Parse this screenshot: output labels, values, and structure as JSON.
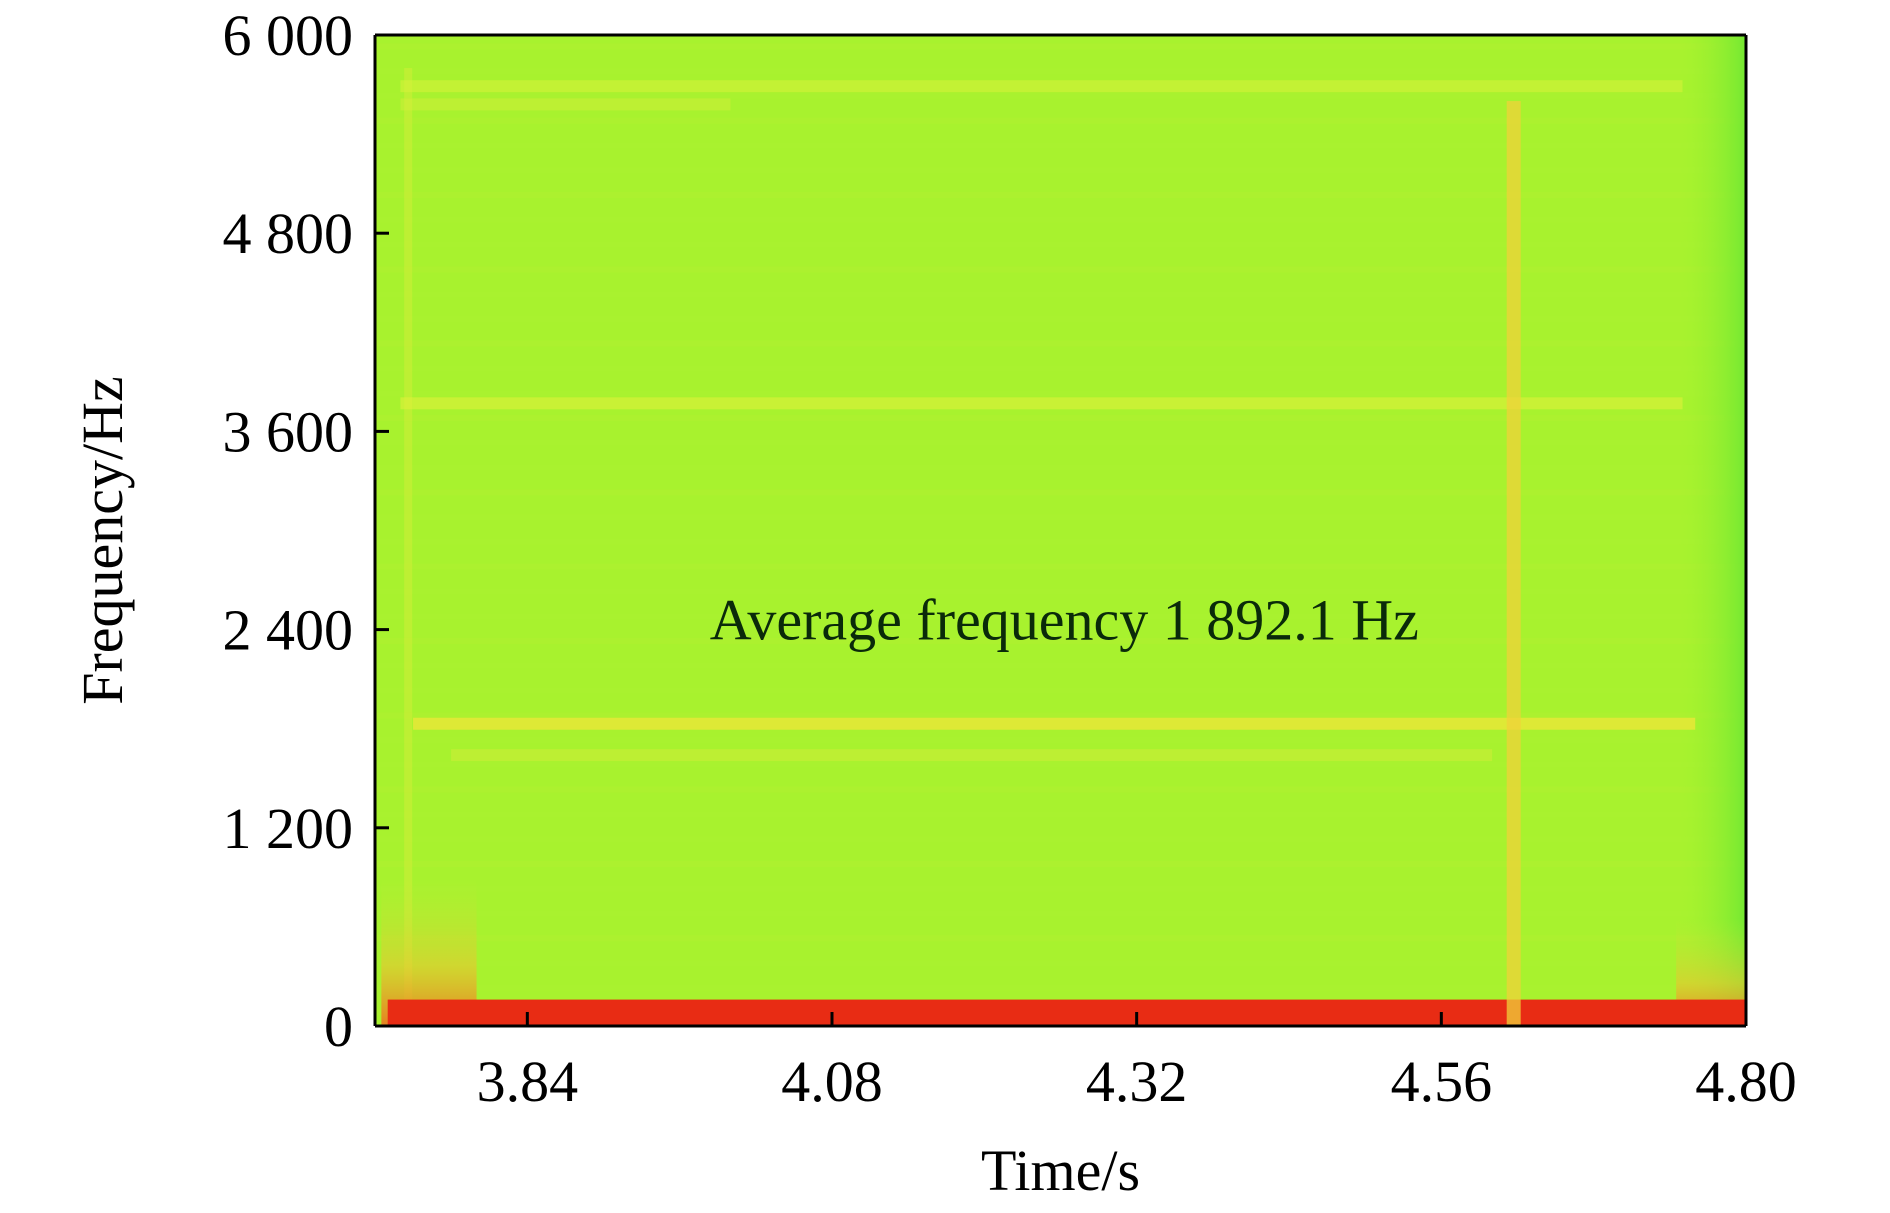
{
  "chart_data": {
    "type": "heatmap",
    "title": "",
    "xlabel": "Time/s",
    "ylabel": "Frequency/Hz",
    "xlim": [
      3.72,
      4.8
    ],
    "ylim": [
      0,
      6000
    ],
    "x_ticks": [
      {
        "value": 3.84,
        "label": "3.84"
      },
      {
        "value": 4.08,
        "label": "4.08"
      },
      {
        "value": 4.32,
        "label": "4.32"
      },
      {
        "value": 4.56,
        "label": "4.56"
      },
      {
        "value": 4.8,
        "label": "4.80"
      }
    ],
    "y_ticks": [
      {
        "value": 0,
        "label": "0"
      },
      {
        "value": 1200,
        "label": "1 200"
      },
      {
        "value": 2400,
        "label": "2 400"
      },
      {
        "value": 3600,
        "label": "3 600"
      },
      {
        "value": 4800,
        "label": "4 800"
      },
      {
        "value": 6000,
        "label": "6 000"
      }
    ],
    "annotation": {
      "text": "Average frequency 1 892.1 Hz",
      "x": 4.2,
      "y": 2310
    },
    "background_color": "#a8f22e",
    "bands": [
      {
        "axis": "freq",
        "value": 5690,
        "from": 3.74,
        "to": 4.75,
        "color": "#d9f23a",
        "intensity": 0.55
      },
      {
        "axis": "freq",
        "value": 5580,
        "from": 3.74,
        "to": 4.0,
        "color": "#d6ee3a",
        "intensity": 0.45
      },
      {
        "axis": "freq",
        "value": 3770,
        "from": 3.74,
        "to": 4.75,
        "color": "#dff03a",
        "intensity": 0.6
      },
      {
        "axis": "freq",
        "value": 1830,
        "from": 3.75,
        "to": 4.76,
        "color": "#f0e63a",
        "intensity": 0.75
      },
      {
        "axis": "freq",
        "value": 1640,
        "from": 3.78,
        "to": 4.6,
        "color": "#d8ec3a",
        "intensity": 0.45
      },
      {
        "axis": "freq",
        "value": 60,
        "from": 3.73,
        "to": 4.8,
        "color": "#e82c14",
        "intensity": 1.0
      },
      {
        "axis": "time",
        "value": 4.617,
        "from": 0,
        "to": 5600,
        "color": "#f0d23a",
        "intensity": 0.75
      }
    ],
    "grid": false
  }
}
